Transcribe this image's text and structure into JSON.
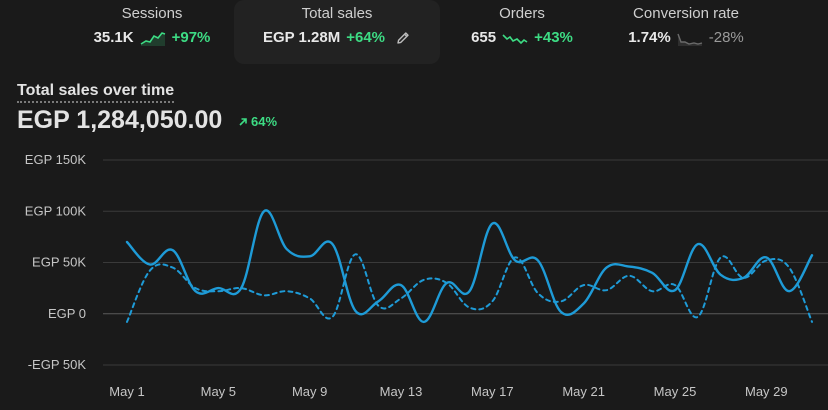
{
  "metrics": [
    {
      "title": "Sessions",
      "value": "35.1K",
      "change": "+97%",
      "trend": "up",
      "spark_icon": "sparkline-up-icon"
    },
    {
      "title": "Total sales",
      "value": "EGP 1.28M",
      "change": "+64%",
      "trend": "up",
      "edit_icon": "pencil-icon"
    },
    {
      "title": "Orders",
      "value": "655",
      "change": "+43%",
      "trend": "up",
      "spark_icon": "sparkline-up-icon"
    },
    {
      "title": "Conversion rate",
      "value": "1.74%",
      "change": "-28%",
      "trend": "down",
      "spark_icon": "sparkline-flat-icon"
    }
  ],
  "chart_header": {
    "title": "Total sales over time",
    "value": "EGP 1,284,050.00",
    "change": "64%",
    "change_icon": "arrow-up-right-icon"
  },
  "colors": {
    "background": "#1a1a1a",
    "series_current": "#1e9bd7",
    "series_previous": "#1e9bd7",
    "positive": "#3ddc84",
    "gridline": "#3a3a3a",
    "zero_line": "#5a5a5a"
  },
  "chart_data": {
    "type": "line",
    "title": "Total sales over time",
    "xlabel": "",
    "ylabel": "",
    "ylim": [
      -50000,
      150000
    ],
    "y_ticks": [
      150000,
      100000,
      50000,
      0,
      -50000
    ],
    "y_tick_labels": [
      "EGP 150K",
      "EGP 100K",
      "EGP 50K",
      "EGP 0",
      "-EGP 50K"
    ],
    "x_tick_labels": [
      "May 1",
      "May 5",
      "May 9",
      "May 13",
      "May 17",
      "May 21",
      "May 25",
      "May 29"
    ],
    "x_tick_days": [
      1,
      5,
      9,
      13,
      17,
      21,
      25,
      29
    ],
    "x_range": [
      1,
      31
    ],
    "grid": true,
    "series": [
      {
        "style": "solid",
        "x": [
          1,
          2,
          3,
          4,
          5,
          6,
          7,
          8,
          9,
          10,
          11,
          12,
          13,
          14,
          15,
          16,
          17,
          18,
          19,
          20,
          21,
          22,
          23,
          24,
          25,
          26,
          27,
          28,
          29,
          30,
          31
        ],
        "values": [
          70000,
          48000,
          62000,
          22000,
          25000,
          25000,
          100000,
          63000,
          56000,
          68000,
          3000,
          12000,
          28000,
          -8000,
          30000,
          22000,
          88000,
          52000,
          52000,
          2000,
          10000,
          45000,
          46000,
          40000,
          23000,
          68000,
          38000,
          35000,
          55000,
          22000,
          57000
        ]
      },
      {
        "style": "dashed",
        "x": [
          1,
          2,
          3,
          4,
          5,
          6,
          7,
          8,
          9,
          10,
          11,
          12,
          13,
          14,
          15,
          16,
          17,
          18,
          19,
          20,
          21,
          22,
          23,
          24,
          25,
          26,
          27,
          28,
          29,
          30,
          31
        ],
        "values": [
          -8000,
          42000,
          45000,
          25000,
          22000,
          25000,
          18000,
          22000,
          15000,
          -3000,
          58000,
          8000,
          15000,
          33000,
          30000,
          6000,
          12000,
          55000,
          20000,
          12000,
          28000,
          23000,
          37000,
          22000,
          28000,
          -3000,
          55000,
          35000,
          52000,
          45000,
          -8000
        ]
      }
    ]
  }
}
